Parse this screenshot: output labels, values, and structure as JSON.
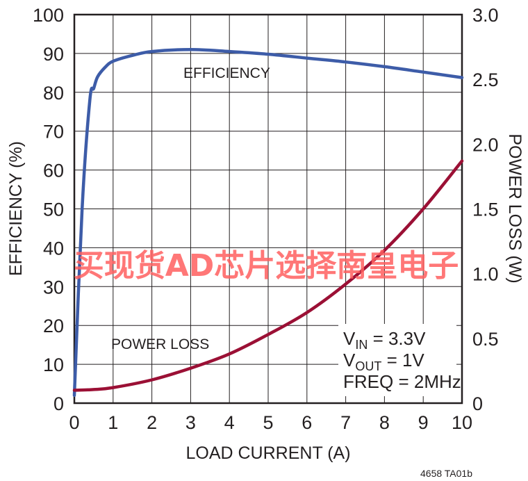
{
  "chart_data": {
    "type": "line",
    "xlabel": "LOAD CURRENT (A)",
    "ylabel": "EFFICIENCY (%)",
    "y2label": "POWER LOSS (W)",
    "xlim": [
      0,
      10
    ],
    "ylim": [
      0,
      100
    ],
    "y2lim": [
      0,
      3.0
    ],
    "x_ticks": [
      "0",
      "1",
      "2",
      "3",
      "4",
      "5",
      "6",
      "7",
      "8",
      "9",
      "10"
    ],
    "y_ticks": [
      "0",
      "10",
      "20",
      "30",
      "40",
      "50",
      "60",
      "70",
      "80",
      "90",
      "100"
    ],
    "y2_ticks": [
      "0",
      "0.5",
      "1.0",
      "1.5",
      "2.0",
      "2.5",
      "3.0"
    ],
    "grid": true,
    "colors": {
      "efficiency": "#3d5ca8",
      "power_loss": "#9b1035",
      "grid": "#231f20"
    },
    "series": [
      {
        "name": "EFFICIENCY",
        "axis": "left",
        "x": [
          0,
          0.2,
          0.4,
          0.5,
          0.6,
          0.8,
          1,
          1.5,
          2,
          3,
          4,
          5,
          6,
          7,
          8,
          9,
          10
        ],
        "y": [
          2,
          50,
          78,
          81,
          84,
          86.5,
          88,
          89.5,
          90.5,
          91,
          90.5,
          89.8,
          88.8,
          87.8,
          86.6,
          85.2,
          83.8
        ]
      },
      {
        "name": "POWER LOSS",
        "axis": "right",
        "x": [
          0,
          0.5,
          1,
          2,
          3,
          4,
          5,
          6,
          7,
          8,
          9,
          10
        ],
        "y": [
          0.1,
          0.105,
          0.12,
          0.18,
          0.27,
          0.38,
          0.53,
          0.7,
          0.92,
          1.18,
          1.5,
          1.87
        ]
      }
    ],
    "annotations": {
      "efficiency_label": "EFFICIENCY",
      "power_loss_label": "POWER LOSS",
      "conditions": [
        {
          "main": "V",
          "sub": "IN",
          "rest": " = 3.3V"
        },
        {
          "main": "V",
          "sub": "OUT",
          "rest": " = 1V"
        },
        {
          "main": "FREQ = 2MHz",
          "sub": "",
          "rest": ""
        }
      ]
    },
    "figure_id": "4658 TA01b"
  },
  "watermark": "买现货AD芯片选择南皇电子"
}
